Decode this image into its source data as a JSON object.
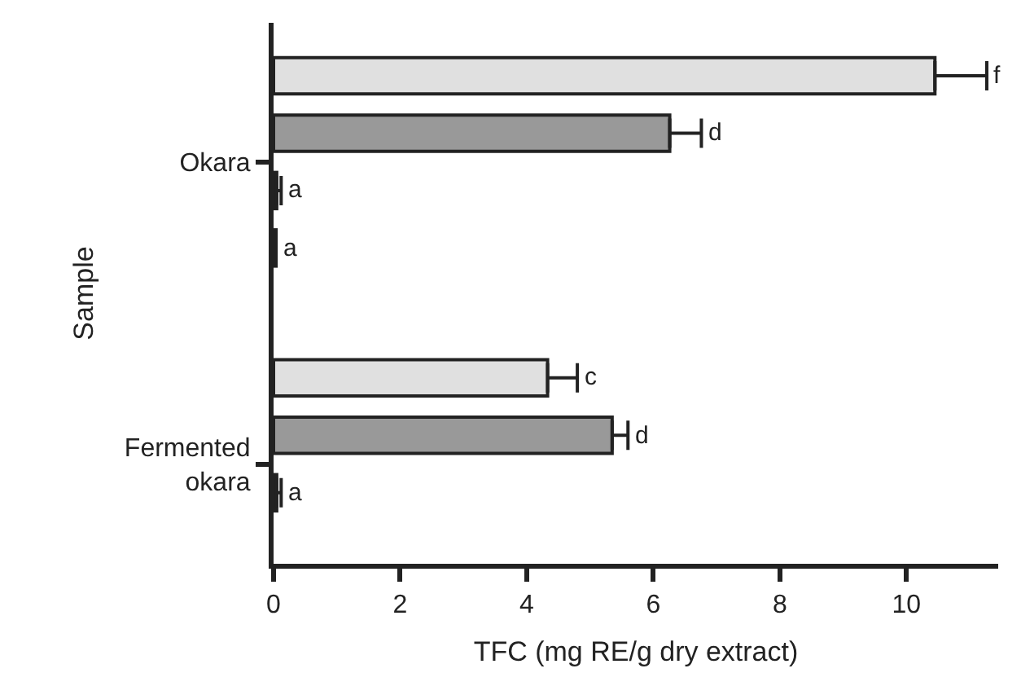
{
  "chart_data": {
    "type": "bar",
    "orientation": "horizontal",
    "xlabel": "TFC (mg RE/g dry extract)",
    "ylabel": "Sample",
    "categories": [
      "Okara",
      "Fermented okara"
    ],
    "series": [
      {
        "color": "#e0e0e0",
        "values": [
          10.45,
          4.33
        ],
        "errors": [
          [
            10.45,
            11.27
          ],
          [
            4.33,
            4.8
          ]
        ],
        "value_labels": [
          "f",
          "c"
        ]
      },
      {
        "color": "#999999",
        "values": [
          6.26,
          5.35
        ],
        "errors": [
          [
            6.26,
            6.76
          ],
          [
            5.35,
            5.6
          ]
        ],
        "value_labels": [
          "d",
          "d"
        ]
      },
      {
        "color": "#222222",
        "values": [
          0.05,
          0.05
        ],
        "errors": [
          [
            0.05,
            0.12
          ],
          [
            0.05,
            0.12
          ]
        ],
        "value_labels": [
          "a",
          "a"
        ]
      },
      {
        "color": "#222222",
        "values": [
          0.04,
          null
        ],
        "errors": [
          null,
          null
        ],
        "value_labels": [
          "a",
          null
        ]
      }
    ],
    "xlim": [
      0,
      11.45
    ],
    "xticks": [
      0,
      2,
      4,
      6,
      8,
      10
    ]
  }
}
